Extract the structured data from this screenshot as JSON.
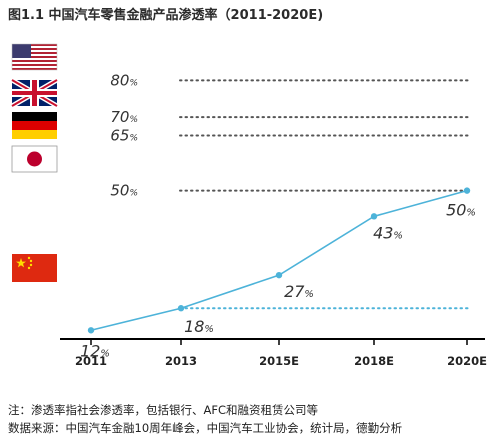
{
  "title": "图1.1 中国汽车零售金融产品渗透率（2011-2020E)",
  "notes": {
    "line1": "注：渗透率指社会渗透率，包括银行、AFC和融资租赁公司等",
    "line2": "数据来源：中国汽车金融10周年峰会，中国汽车工业协会，统计局，德勤分析"
  },
  "colors": {
    "line": "#4db3d9",
    "benchmark": "#555555",
    "china_ref": "#4db3d9",
    "axis": "#000000"
  },
  "chart_data": {
    "type": "line",
    "categories": [
      "2011",
      "2013",
      "2015E",
      "2018E",
      "2020E"
    ],
    "series": [
      {
        "values": [
          12,
          18,
          27,
          43,
          50
        ],
        "labels": [
          "12%",
          "18%",
          "27%",
          "43%",
          "50%"
        ]
      }
    ],
    "ylim": [
      5,
      85
    ],
    "benchmarks": [
      {
        "flag": "us-flag",
        "value": 80,
        "label": "80%"
      },
      {
        "flag": "uk-flag",
        "value": 70,
        "label": "70%"
      },
      {
        "flag": "de-flag",
        "value": 65,
        "label": "65%"
      },
      {
        "flag": "jp-flag",
        "value": 50,
        "label": "50%"
      }
    ],
    "china_reference": {
      "flag": "cn-flag",
      "value": 18
    }
  }
}
